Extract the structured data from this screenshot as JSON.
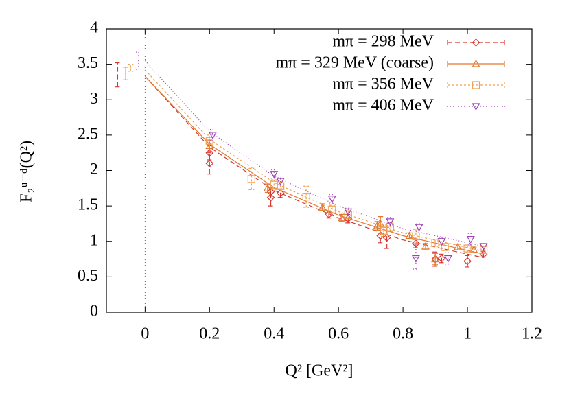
{
  "chart_data": {
    "type": "scatter",
    "xlabel": "Q² [GeV²]",
    "ylabel": "F₂ᵘ⁻ᵈ(Q²)",
    "xlim": [
      -0.12,
      1.2
    ],
    "ylim": [
      0,
      4
    ],
    "xticks": [
      0,
      0.2,
      0.4,
      0.6,
      0.8,
      1,
      1.2
    ],
    "yticks": [
      0,
      0.5,
      1,
      1.5,
      2,
      2.5,
      3,
      3.5,
      4
    ],
    "legend": "top-right",
    "series": [
      {
        "name": "mπ = 298 MeV",
        "color": "#d8362f",
        "dash": "7,4",
        "marker": "diamond",
        "x": [
          0.2,
          0.2,
          0.39,
          0.39,
          0.42,
          0.57,
          0.63,
          0.73,
          0.75,
          0.84,
          0.9,
          0.92,
          1.0,
          1.05
        ],
        "values": [
          2.25,
          2.1,
          1.62,
          1.7,
          1.68,
          1.38,
          1.32,
          1.08,
          1.05,
          0.97,
          0.75,
          0.76,
          0.72,
          0.82
        ],
        "errors": [
          0.1,
          0.15,
          0.12,
          0.06,
          0.06,
          0.05,
          0.06,
          0.1,
          0.15,
          0.06,
          0.1,
          0.06,
          0.08,
          0.04
        ],
        "intercept": {
          "x": -0.085,
          "value": 3.35,
          "error": 0.17
        },
        "fit_x": [
          0,
          0.2,
          0.4,
          0.6,
          0.8,
          1.05
        ],
        "fit_values": [
          3.33,
          2.33,
          1.72,
          1.33,
          1.02,
          0.77
        ]
      },
      {
        "name": "mπ = 329 MeV (coarse)",
        "color": "#e07830",
        "dash": "none",
        "marker": "triangle-up",
        "x": [
          0.2,
          0.38,
          0.55,
          0.61,
          0.72,
          0.73,
          0.82,
          0.87,
          0.9,
          0.97,
          1.02
        ],
        "values": [
          2.35,
          1.75,
          1.48,
          1.33,
          1.22,
          1.25,
          1.08,
          0.93,
          0.75,
          0.92,
          0.88
        ],
        "errors": [
          0.08,
          0.06,
          0.05,
          0.05,
          0.06,
          0.1,
          0.04,
          0.04,
          0.08,
          0.04,
          0.04
        ],
        "intercept": {
          "x": -0.06,
          "value": 3.37,
          "error": 0.09
        },
        "fit_x": [
          0,
          0.2,
          0.4,
          0.6,
          0.8,
          1.05
        ],
        "fit_values": [
          3.33,
          2.37,
          1.76,
          1.37,
          1.08,
          0.82
        ]
      },
      {
        "name": "mπ = 356 MeV",
        "color": "#f0a050",
        "dash": "3,3",
        "marker": "square",
        "x": [
          0.2,
          0.33,
          0.4,
          0.42,
          0.5,
          0.58,
          0.63,
          0.74,
          0.76,
          0.84,
          0.9,
          0.93,
          1.0,
          1.05
        ],
        "values": [
          2.42,
          1.88,
          1.8,
          1.78,
          1.63,
          1.45,
          1.38,
          1.15,
          1.2,
          1.07,
          0.98,
          0.92,
          0.9,
          0.88
        ],
        "errors": [
          0.08,
          0.15,
          0.07,
          0.07,
          0.15,
          0.06,
          0.06,
          0.08,
          0.06,
          0.1,
          0.05,
          0.05,
          0.05,
          0.05
        ],
        "intercept": {
          "x": -0.045,
          "value": 3.45,
          "error": 0.05
        },
        "fit_x": [
          0,
          0.2,
          0.4,
          0.6,
          0.8,
          1.05
        ],
        "fit_values": [
          3.42,
          2.44,
          1.83,
          1.42,
          1.12,
          0.86
        ]
      },
      {
        "name": "mπ = 406 MeV",
        "color": "#a040b8",
        "dash": "1,3",
        "marker": "triangle-down",
        "x": [
          0.21,
          0.4,
          0.42,
          0.58,
          0.63,
          0.76,
          0.84,
          0.85,
          0.92,
          0.94,
          1.01,
          1.05
        ],
        "values": [
          2.5,
          1.95,
          1.85,
          1.6,
          1.42,
          1.28,
          0.76,
          1.2,
          1.0,
          0.76,
          1.03,
          0.93
        ],
        "errors": [
          0.08,
          0.06,
          0.05,
          0.06,
          0.05,
          0.06,
          0.15,
          0.05,
          0.05,
          0.08,
          0.08,
          0.04
        ],
        "intercept": {
          "x": -0.02,
          "value": 3.55,
          "error": 0.12
        },
        "fit_x": [
          0,
          0.2,
          0.4,
          0.6,
          0.8,
          1.05
        ],
        "fit_values": [
          3.55,
          2.55,
          1.92,
          1.5,
          1.18,
          0.93
        ]
      }
    ]
  }
}
